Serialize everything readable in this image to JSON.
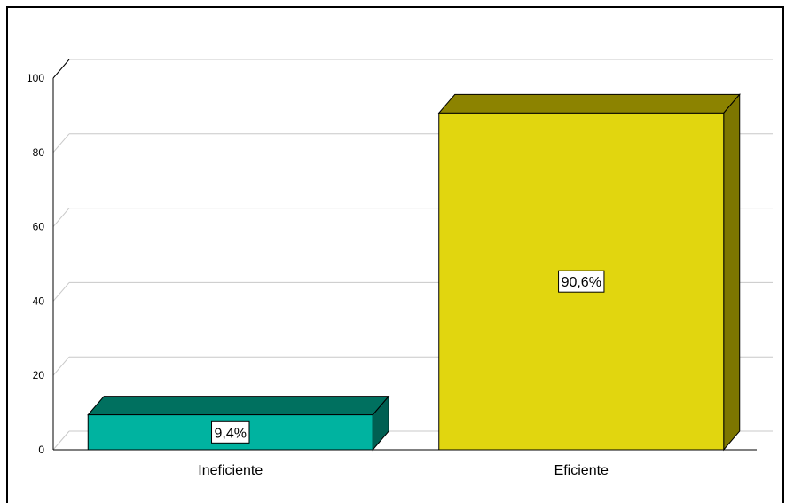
{
  "chart_data": {
    "type": "bar",
    "style": "3d",
    "categories": [
      "Ineficiente",
      "Eficiente"
    ],
    "values": [
      9.4,
      90.6
    ],
    "data_labels": [
      "9,4%",
      "90,6%"
    ],
    "ylim": [
      0,
      100
    ],
    "yticks": [
      "0",
      "20",
      "40",
      "60",
      "80",
      "100"
    ],
    "grid": true,
    "colors": {
      "front": [
        "#00b3a0",
        "#e1d60f"
      ],
      "top": [
        "#00705f",
        "#8c8300"
      ],
      "side": [
        "#005f52",
        "#7d7600"
      ],
      "grid": "#c8c8c8"
    }
  }
}
